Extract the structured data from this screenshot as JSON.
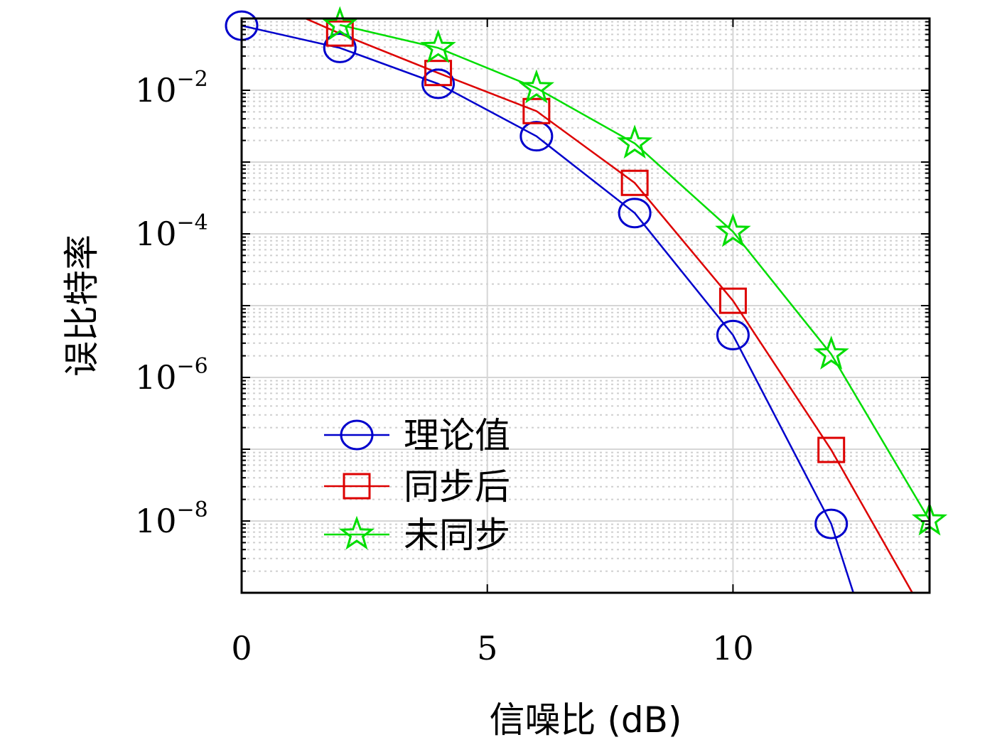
{
  "chart_data": {
    "type": "line",
    "title": "",
    "xlabel": "信噪比 (dB)",
    "ylabel": "误比特率",
    "xlim": [
      0,
      14
    ],
    "ylim": [
      1e-09,
      0.1
    ],
    "yscale": "log",
    "grid": true,
    "legend_position": "lower-left",
    "x_ticks": [
      {
        "value": 0,
        "label": "0"
      },
      {
        "value": 5,
        "label": "5"
      },
      {
        "value": 10,
        "label": "10"
      }
    ],
    "y_ticks": [
      {
        "value": 0.01,
        "base": "10",
        "exp": "−2"
      },
      {
        "value": 0.0001,
        "base": "10",
        "exp": "−4"
      },
      {
        "value": 1e-06,
        "base": "10",
        "exp": "−6"
      },
      {
        "value": 1e-08,
        "base": "10",
        "exp": "−8"
      }
    ],
    "series": [
      {
        "name": "理论值",
        "color": "#0000cc",
        "marker": "circle",
        "x": [
          0,
          2,
          4,
          6,
          8,
          10,
          12
        ],
        "y": [
          0.0794,
          0.0389,
          0.0123,
          0.00229,
          0.000195,
          3.89e-06,
          9.1e-09
        ],
        "line_extension": {
          "x": 12.45,
          "y": 1e-09
        }
      },
      {
        "name": "同步后",
        "color": "#dd0000",
        "marker": "square",
        "x": [
          2,
          4,
          6,
          8,
          10,
          12
        ],
        "y": [
          0.0617,
          0.0174,
          0.00513,
          0.000513,
          1.17e-05,
          9.77e-08
        ],
        "line_extension": {
          "x": 13.65,
          "y": 1e-09
        },
        "line_start": {
          "x": 1.3,
          "y": 0.1
        }
      },
      {
        "name": "未同步",
        "color": "#00dd00",
        "marker": "star",
        "x": [
          2,
          4,
          6,
          8,
          10,
          12,
          14
        ],
        "y": [
          0.0813,
          0.0389,
          0.0107,
          0.00182,
          0.000107,
          2.1e-06,
          1.02e-08
        ]
      }
    ]
  }
}
